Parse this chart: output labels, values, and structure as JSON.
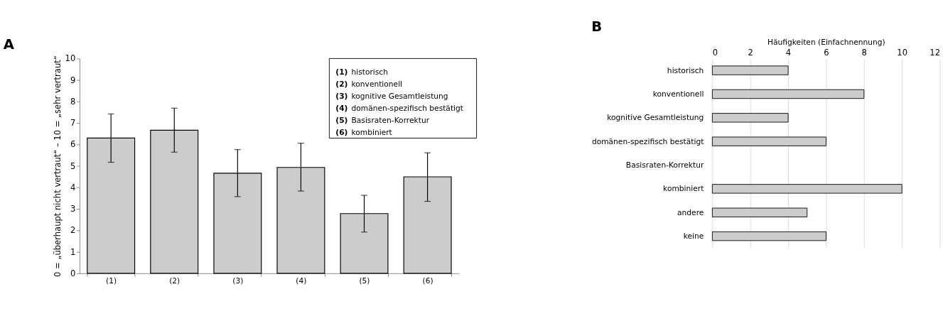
{
  "chart_data": [
    {
      "type": "bar",
      "title": "A",
      "ylabel": "0 = „überhaupt nicht vertraut“ – 10 = „sehr vertraut“",
      "categories": [
        "(1)",
        "(2)",
        "(3)",
        "(4)",
        "(5)",
        "(6)"
      ],
      "series": [
        {
          "color": "#cccccc",
          "values": [
            6.3,
            6.66,
            4.66,
            4.93,
            2.78,
            4.49
          ],
          "errors": [
            [
              5.17,
              7.42
            ],
            [
              5.64,
              7.69
            ],
            [
              3.57,
              5.76
            ],
            [
              3.83,
              6.06
            ],
            [
              1.92,
              3.63
            ],
            [
              3.35,
              5.61
            ]
          ]
        }
      ],
      "ylim": [
        0,
        10
      ],
      "yticks": [
        0,
        1,
        2,
        3,
        4,
        5,
        6,
        7,
        8,
        9,
        10
      ],
      "grid": false,
      "annotations": [
        "(1) historisch",
        "(2) konventionell",
        "(3) kognitive Gesamtleistung",
        "(4) domänen-spezifisch bestätigt",
        "(5) Basisraten-Korrektur",
        "(6) kombiniert"
      ]
    },
    {
      "type": "bar",
      "title": "B",
      "orientation": "horizontal",
      "xlabel": "Häufigkeiten (Einfachnennung)",
      "categories": [
        "historisch",
        "konventionell",
        "kognitive Gesamtleistung",
        "domänen-spezifisch bestätigt",
        "Basisraten-Korrektur",
        "kombiniert",
        "andere",
        "keine"
      ],
      "series": [
        {
          "color": "#cccccc",
          "values": [
            4,
            8,
            4,
            6,
            0,
            10,
            5,
            6
          ]
        }
      ],
      "xlim": [
        0,
        12
      ],
      "xticks": [
        0,
        2,
        4,
        6,
        8,
        10,
        12
      ],
      "grid": "x"
    }
  ]
}
